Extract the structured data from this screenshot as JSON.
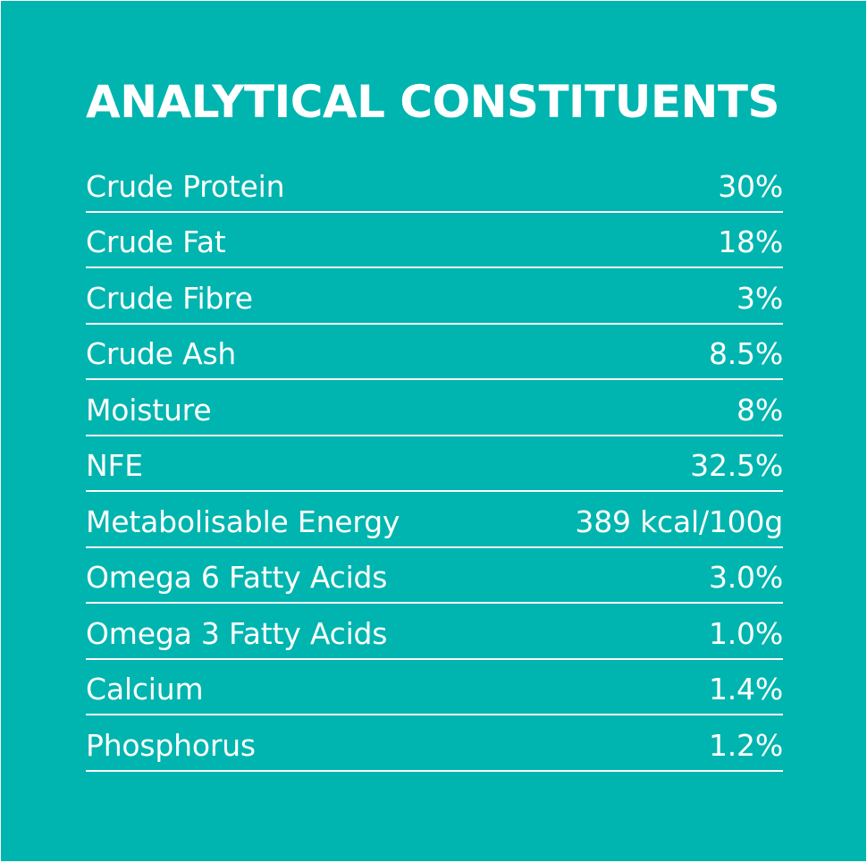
{
  "title": "ANALYTICAL CONSTITUENTS",
  "rows": [
    {
      "label": "Crude Protein",
      "value": "30%"
    },
    {
      "label": "Crude Fat",
      "value": "18%"
    },
    {
      "label": "Crude Fibre",
      "value": "3%"
    },
    {
      "label": "Crude Ash",
      "value": "8.5%"
    },
    {
      "label": "Moisture",
      "value": "8%"
    },
    {
      "label": "NFE",
      "value": "32.5%"
    },
    {
      "label": "Metabolisable Energy",
      "value": "389 kcal/100g"
    },
    {
      "label": "Omega 6 Fatty Acids",
      "value": "3.0%"
    },
    {
      "label": "Omega 3 Fatty Acids",
      "value": "1.0%"
    },
    {
      "label": "Calcium",
      "value": "1.4%"
    },
    {
      "label": "Phosphorus",
      "value": "1.2%"
    }
  ],
  "colors": {
    "background": "#00b5af",
    "text": "#ffffff"
  }
}
